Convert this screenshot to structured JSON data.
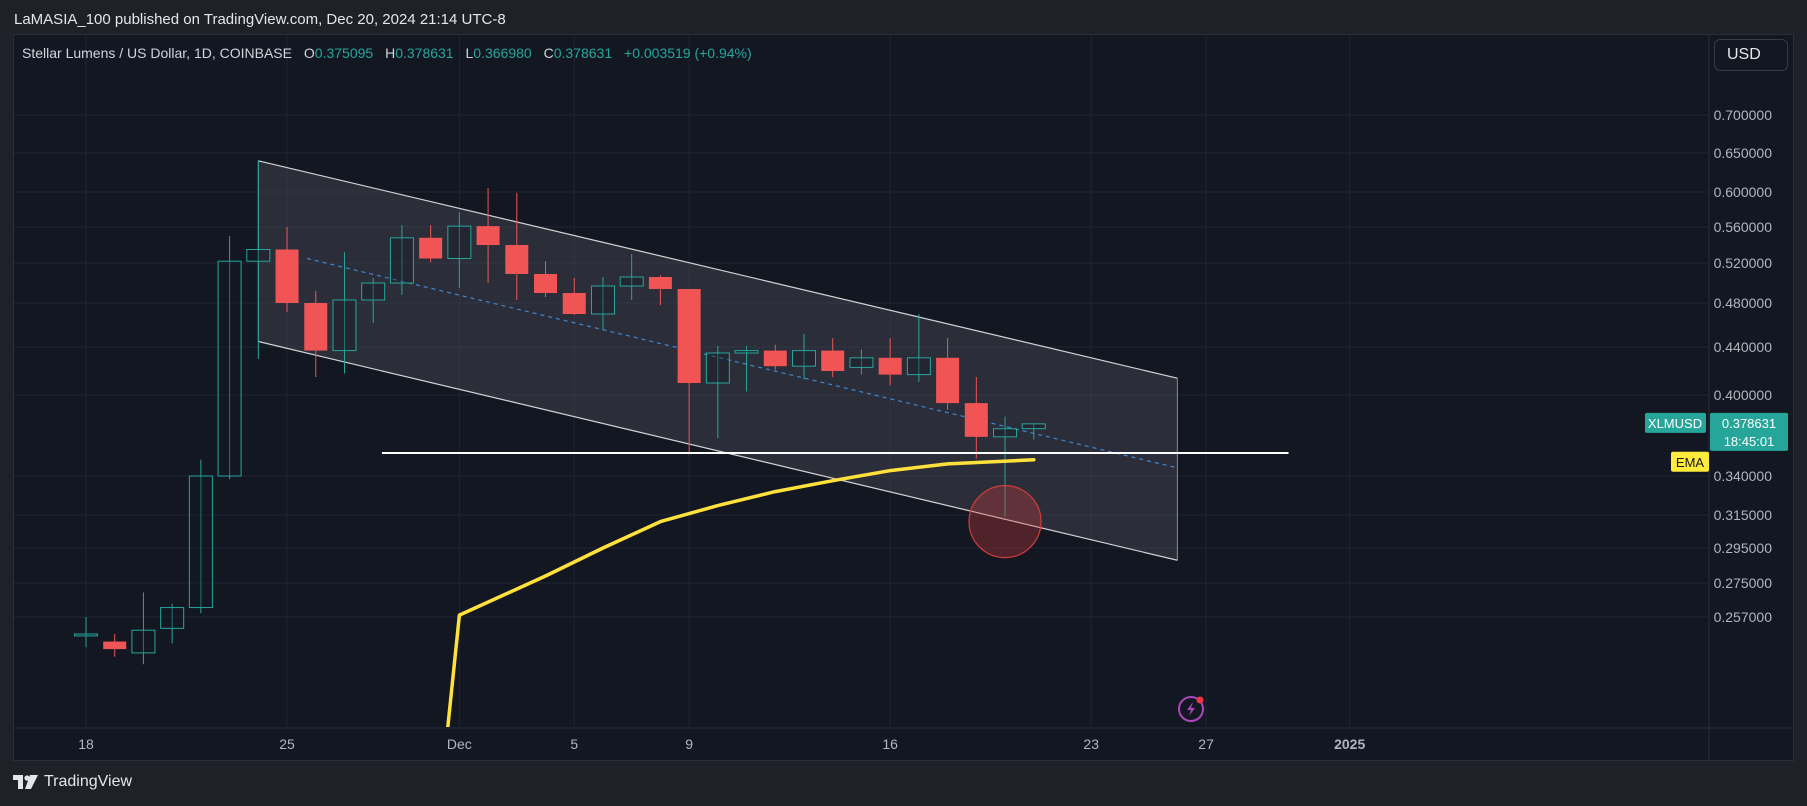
{
  "publisher_line": "LaMASIA_100 published on TradingView.com, Dec 20, 2024 21:14 UTC-8",
  "legend": {
    "symbol": "Stellar Lumens / US Dollar, 1D, COINBASE",
    "o_label": "O",
    "o_value": "0.375095",
    "h_label": "H",
    "h_value": "0.378631",
    "l_label": "L",
    "l_value": "0.366980",
    "c_label": "C",
    "c_value": "0.378631",
    "change": "+0.003519 (+0.94%)"
  },
  "currency_button": "USD",
  "brand": "TradingView",
  "badges": {
    "ticker": "XLMUSD",
    "last_price": "0.378631",
    "countdown": "18:45:01",
    "ema": "EMA"
  },
  "colors": {
    "up": "#26a69a",
    "down": "#f05454",
    "ema": "#ffe13b",
    "channel_fill": "#4a4c57",
    "channel_edge": "#d4d4d4",
    "midline": "#3d88cf",
    "support_line": "#ffffff",
    "highlight_circle": "#d23c3c",
    "price_badge": "#26a69a",
    "ema_badge": "#ffeb3b"
  },
  "icons": [
    "lightning-icon"
  ],
  "chart_data": {
    "type": "candlestick",
    "symbol": "XLMUSD",
    "x_tick_labels": [
      "18",
      "25",
      "Dec",
      "5",
      "9",
      "16",
      "23",
      "27",
      "2025"
    ],
    "y_tick_labels": [
      "0.700000",
      "0.650000",
      "0.600000",
      "0.560000",
      "0.520000",
      "0.480000",
      "0.440000",
      "0.400000",
      "0.340000",
      "0.315000",
      "0.295000",
      "0.275000",
      "0.257000"
    ],
    "last_price": 0.378631,
    "candles": [
      {
        "date": "2024-11-18",
        "open": 0.247,
        "high": 0.257,
        "low": 0.241,
        "close": 0.248
      },
      {
        "date": "2024-11-19",
        "open": 0.244,
        "high": 0.248,
        "low": 0.236,
        "close": 0.24
      },
      {
        "date": "2024-11-20",
        "open": 0.238,
        "high": 0.27,
        "low": 0.232,
        "close": 0.25
      },
      {
        "date": "2024-11-21",
        "open": 0.251,
        "high": 0.264,
        "low": 0.243,
        "close": 0.262
      },
      {
        "date": "2024-11-22",
        "open": 0.262,
        "high": 0.352,
        "low": 0.259,
        "close": 0.34
      },
      {
        "date": "2024-11-23",
        "open": 0.34,
        "high": 0.55,
        "low": 0.338,
        "close": 0.522
      },
      {
        "date": "2024-11-24",
        "open": 0.522,
        "high": 0.64,
        "low": 0.43,
        "close": 0.535
      },
      {
        "date": "2024-11-25",
        "open": 0.535,
        "high": 0.56,
        "low": 0.472,
        "close": 0.48
      },
      {
        "date": "2024-11-26",
        "open": 0.48,
        "high": 0.492,
        "low": 0.415,
        "close": 0.437
      },
      {
        "date": "2024-11-27",
        "open": 0.437,
        "high": 0.532,
        "low": 0.418,
        "close": 0.483
      },
      {
        "date": "2024-11-28",
        "open": 0.483,
        "high": 0.505,
        "low": 0.462,
        "close": 0.5
      },
      {
        "date": "2024-11-29",
        "open": 0.5,
        "high": 0.562,
        "low": 0.488,
        "close": 0.548
      },
      {
        "date": "2024-11-30",
        "open": 0.548,
        "high": 0.562,
        "low": 0.521,
        "close": 0.525
      },
      {
        "date": "2024-12-01",
        "open": 0.525,
        "high": 0.577,
        "low": 0.495,
        "close": 0.561
      },
      {
        "date": "2024-12-02",
        "open": 0.561,
        "high": 0.605,
        "low": 0.5,
        "close": 0.54
      },
      {
        "date": "2024-12-03",
        "open": 0.54,
        "high": 0.599,
        "low": 0.483,
        "close": 0.509
      },
      {
        "date": "2024-12-04",
        "open": 0.509,
        "high": 0.522,
        "low": 0.486,
        "close": 0.49
      },
      {
        "date": "2024-12-05",
        "open": 0.49,
        "high": 0.505,
        "low": 0.469,
        "close": 0.47
      },
      {
        "date": "2024-12-06",
        "open": 0.47,
        "high": 0.506,
        "low": 0.455,
        "close": 0.497
      },
      {
        "date": "2024-12-07",
        "open": 0.497,
        "high": 0.53,
        "low": 0.483,
        "close": 0.506
      },
      {
        "date": "2024-12-08",
        "open": 0.506,
        "high": 0.508,
        "low": 0.478,
        "close": 0.494
      },
      {
        "date": "2024-12-09",
        "open": 0.494,
        "high": 0.494,
        "low": 0.356,
        "close": 0.41
      },
      {
        "date": "2024-12-10",
        "open": 0.41,
        "high": 0.441,
        "low": 0.368,
        "close": 0.435
      },
      {
        "date": "2024-12-11",
        "open": 0.435,
        "high": 0.441,
        "low": 0.403,
        "close": 0.437
      },
      {
        "date": "2024-12-12",
        "open": 0.437,
        "high": 0.442,
        "low": 0.421,
        "close": 0.424
      },
      {
        "date": "2024-12-13",
        "open": 0.424,
        "high": 0.452,
        "low": 0.413,
        "close": 0.437
      },
      {
        "date": "2024-12-14",
        "open": 0.437,
        "high": 0.448,
        "low": 0.415,
        "close": 0.42
      },
      {
        "date": "2024-12-15",
        "open": 0.423,
        "high": 0.438,
        "low": 0.417,
        "close": 0.431
      },
      {
        "date": "2024-12-16",
        "open": 0.431,
        "high": 0.448,
        "low": 0.408,
        "close": 0.417
      },
      {
        "date": "2024-12-17",
        "open": 0.417,
        "high": 0.47,
        "low": 0.411,
        "close": 0.431
      },
      {
        "date": "2024-12-18",
        "open": 0.431,
        "high": 0.448,
        "low": 0.389,
        "close": 0.394
      },
      {
        "date": "2024-12-19",
        "open": 0.394,
        "high": 0.415,
        "low": 0.353,
        "close": 0.369
      },
      {
        "date": "2024-12-20",
        "open": 0.369,
        "high": 0.384,
        "low": 0.314,
        "close": 0.375
      },
      {
        "date": "2024-12-21",
        "open": 0.375095,
        "high": 0.378631,
        "low": 0.36698,
        "close": 0.378631
      }
    ],
    "ema": {
      "dates": [
        "2024-12-01",
        "2024-12-04",
        "2024-12-06",
        "2024-12-08",
        "2024-12-10",
        "2024-12-12",
        "2024-12-14",
        "2024-12-16",
        "2024-12-18",
        "2024-12-21"
      ],
      "values": [
        0.258,
        0.279,
        0.295,
        0.311,
        0.321,
        0.33,
        0.337,
        0.344,
        0.349,
        0.352
      ]
    },
    "channel": {
      "start_date": "2024-11-24",
      "end_date": "2024-12-26",
      "upper": [
        0.64,
        0.414
      ],
      "lower": [
        0.445,
        0.288
      ],
      "mid": [
        0.525,
        0.346
      ]
    },
    "support": {
      "start_date": "2024-11-29",
      "end_date": "2024-12-29",
      "value": 0.357
    },
    "highlight": {
      "date": "2024-12-20",
      "value": 0.311
    }
  }
}
